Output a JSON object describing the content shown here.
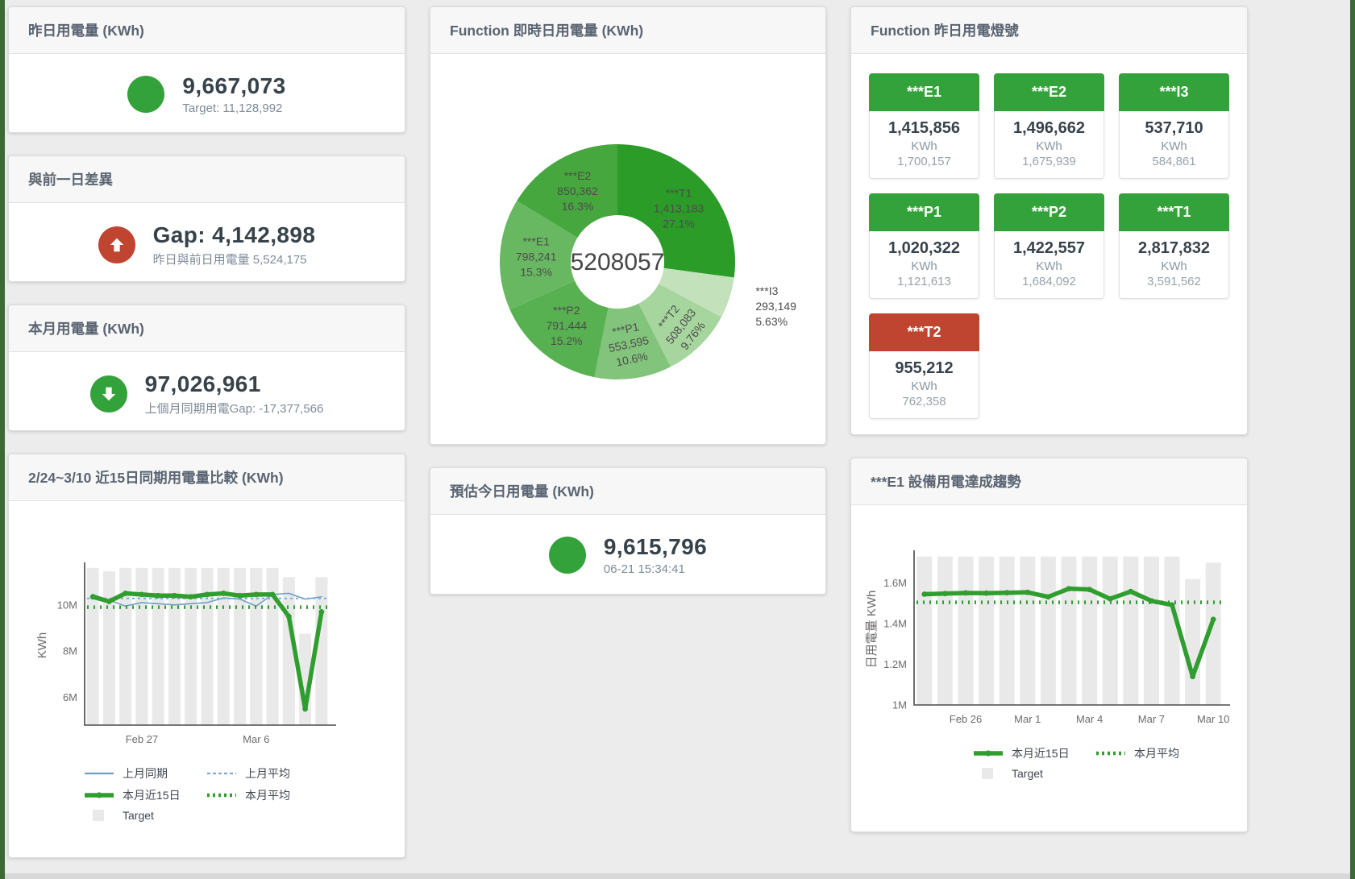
{
  "page": {
    "bg": "#ececec",
    "edge_color": "#3c6a36",
    "bottom_bar_color": "#d8d8d8"
  },
  "stat_cards": {
    "yesterday": {
      "title": "昨日用電量 (KWh)",
      "value": "9,667,073",
      "subtitle": "Target: 11,128,992",
      "icon": "circle",
      "icon_color": "#34a23a"
    },
    "day_gap": {
      "title": "與前一日差異",
      "value": "Gap: 4,142,898",
      "subtitle": "昨日與前日用電量 5,524,175",
      "icon": "arrow-up",
      "icon_color": "#c04531"
    },
    "month": {
      "title": "本月用電量 (KWh)",
      "value": "97,026,961",
      "subtitle": "上個月同期用電Gap: -17,377,566",
      "icon": "arrow-down",
      "icon_color": "#34a23a"
    },
    "estimate": {
      "title": "預估今日用電量 (KWh)",
      "value": "9,615,796",
      "subtitle": "06-21 15:34:41",
      "icon": "circle",
      "icon_color": "#34a23a"
    }
  },
  "lights": {
    "title": "Function 昨日用電燈號",
    "unit": "KWh",
    "status_colors": {
      "green": "#34a23a",
      "red": "#c04531"
    },
    "tiles": [
      {
        "label": "***E1",
        "value": "1,415,856",
        "target": "1,700,157",
        "status": "green"
      },
      {
        "label": "***E2",
        "value": "1,496,662",
        "target": "1,675,939",
        "status": "green"
      },
      {
        "label": "***I3",
        "value": "537,710",
        "target": "584,861",
        "status": "green"
      },
      {
        "label": "***P1",
        "value": "1,020,322",
        "target": "1,121,613",
        "status": "green"
      },
      {
        "label": "***P2",
        "value": "1,422,557",
        "target": "1,684,092",
        "status": "green"
      },
      {
        "label": "***T1",
        "value": "2,817,832",
        "target": "3,591,562",
        "status": "green"
      },
      {
        "label": "***T2",
        "value": "955,212",
        "target": "762,358",
        "status": "red"
      }
    ]
  },
  "chart_data": [
    {
      "id": "realtime_donut",
      "type": "pie",
      "title": "Function 即時日用電量 (KWh)",
      "center_total": "5208057",
      "segments": [
        {
          "name": "***T1",
          "value": 1413183,
          "value_label": "1,413,183",
          "pct": 27.1,
          "pct_label": "27.1%",
          "color": "#2a9c27",
          "label_rotate": 0,
          "label_outside": false,
          "label_radius": 101
        },
        {
          "name": "***I3",
          "value": 293149,
          "value_label": "293,149",
          "pct": 5.63,
          "pct_label": "5.63%",
          "color": "#c3e2bc",
          "label_rotate": 0,
          "label_outside": true,
          "label_radius": 180
        },
        {
          "name": "***T2",
          "value": 508083,
          "value_label": "508,083",
          "pct": 9.76,
          "pct_label": "9.76%",
          "color": "#a6d59e",
          "label_rotate": -52,
          "label_outside": false,
          "label_radius": 112
        },
        {
          "name": "***P1",
          "value": 553595,
          "value_label": "553,595",
          "pct": 10.6,
          "pct_label": "10.6%",
          "color": "#82c47b",
          "label_rotate": -12,
          "label_outside": false,
          "label_radius": 103
        },
        {
          "name": "***P2",
          "value": 791444,
          "value_label": "791,444",
          "pct": 15.2,
          "pct_label": "15.2%",
          "color": "#57b150",
          "label_rotate": 0,
          "label_outside": false,
          "label_radius": 101
        },
        {
          "name": "***E1",
          "value": 798241,
          "value_label": "798,241",
          "pct": 15.3,
          "pct_label": "15.3%",
          "color": "#68b861",
          "label_rotate": 0,
          "label_outside": false,
          "label_radius": 101
        },
        {
          "name": "***E2",
          "value": 850362,
          "value_label": "850,362",
          "pct": 16.3,
          "pct_label": "16.3%",
          "color": "#45a73e",
          "label_rotate": 0,
          "label_outside": false,
          "label_radius": 101
        }
      ]
    },
    {
      "id": "compare15",
      "type": "line",
      "title": "2/24~3/10 近15日同期用電量比較 (KWh)",
      "ylabel": "KWh",
      "ylim": [
        4800000,
        11700000
      ],
      "yticks": [
        {
          "v": 6000000,
          "label": "6M"
        },
        {
          "v": 8000000,
          "label": "8M"
        },
        {
          "v": 10000000,
          "label": "10M"
        }
      ],
      "x_days": [
        "2/24",
        "2/25",
        "2/26",
        "2/27",
        "2/28",
        "3/1",
        "3/2",
        "3/3",
        "3/4",
        "3/5",
        "3/6",
        "3/7",
        "3/8",
        "3/9",
        "3/10"
      ],
      "xticks": [
        {
          "i": 3,
          "label": "Feb 27"
        },
        {
          "i": 10,
          "label": "Mar 6"
        }
      ],
      "bars": {
        "name": "Target",
        "color": "#e9e9e9",
        "values": [
          11600000,
          11450000,
          11600000,
          11600000,
          11600000,
          11600000,
          11600000,
          11600000,
          11600000,
          11600000,
          11600000,
          11600000,
          11200000,
          8750000,
          11200000
        ]
      },
      "series": [
        {
          "name": "上月同期",
          "color": "#6f9fc8",
          "width": 1.6,
          "dash": "",
          "marker": false,
          "values": [
            10450000,
            10200000,
            9950000,
            10100000,
            10050000,
            10000000,
            10050000,
            10100000,
            10300000,
            10250000,
            9950000,
            10450000,
            10500000,
            10250000,
            10350000
          ]
        },
        {
          "name": "上月平均",
          "color": "#7dabd1",
          "width": 2,
          "dash": "3,4",
          "marker": false,
          "const": 10280000
        },
        {
          "name": "本月平均",
          "color": "#2f9e2f",
          "width": 4.5,
          "dash": "2,6",
          "marker": false,
          "const": 9900000
        },
        {
          "name": "本月近15日",
          "color": "#2f9e2f",
          "width": 5.5,
          "dash": "",
          "marker": true,
          "values": [
            10350000,
            10150000,
            10500000,
            10450000,
            10400000,
            10400000,
            10350000,
            10450000,
            10500000,
            10400000,
            10450000,
            10450000,
            9500000,
            5500000,
            9700000
          ]
        }
      ],
      "legend_rows": [
        [
          {
            "sw": "solid",
            "color": "#6f9fc8",
            "label": "上月同期"
          },
          {
            "sw": "dashed",
            "color": "#7dabd1",
            "label": "上月平均"
          }
        ],
        [
          {
            "sw": "thick",
            "color": "#2f9e2f",
            "label": "本月近15日"
          },
          {
            "sw": "dotted",
            "color": "#2f9e2f",
            "label": "本月平均"
          }
        ],
        [
          {
            "sw": "bar",
            "color": "#e9e9e9",
            "label": "Target"
          }
        ]
      ]
    },
    {
      "id": "e1_trend",
      "type": "line",
      "title": "***E1 設備用電達成趨勢",
      "ylabel": "日用電量 KWh",
      "ylim": [
        1000000,
        1745000
      ],
      "yticks": [
        {
          "v": 1000000,
          "label": "1M"
        },
        {
          "v": 1200000,
          "label": "1.2M"
        },
        {
          "v": 1400000,
          "label": "1.4M"
        },
        {
          "v": 1600000,
          "label": "1.6M"
        }
      ],
      "x_days": [
        "2/24",
        "2/25",
        "2/26",
        "2/27",
        "2/28",
        "3/1",
        "3/2",
        "3/3",
        "3/4",
        "3/5",
        "3/6",
        "3/7",
        "3/8",
        "3/9",
        "3/10"
      ],
      "xticks": [
        {
          "i": 2,
          "label": "Feb 26"
        },
        {
          "i": 5,
          "label": "Mar 1"
        },
        {
          "i": 8,
          "label": "Mar 4"
        },
        {
          "i": 11,
          "label": "Mar 7"
        },
        {
          "i": 14,
          "label": "Mar 10"
        }
      ],
      "bars": {
        "name": "Target",
        "color": "#e9e9e9",
        "values": [
          1730000,
          1730000,
          1730000,
          1730000,
          1730000,
          1730000,
          1730000,
          1730000,
          1730000,
          1730000,
          1730000,
          1730000,
          1730000,
          1620000,
          1700000
        ]
      },
      "series": [
        {
          "name": "本月平均",
          "color": "#2f9e2f",
          "width": 4.5,
          "dash": "2,6",
          "marker": false,
          "const": 1505000
        },
        {
          "name": "本月近15日",
          "color": "#2f9e2f",
          "width": 5.5,
          "dash": "",
          "marker": true,
          "values": [
            1545000,
            1548000,
            1551000,
            1550000,
            1552000,
            1554000,
            1532000,
            1572000,
            1568000,
            1522000,
            1558000,
            1512000,
            1492000,
            1140000,
            1421000
          ]
        }
      ],
      "legend_rows": [
        [
          {
            "sw": "thick",
            "color": "#2f9e2f",
            "label": "本月近15日"
          },
          {
            "sw": "dotted",
            "color": "#2f9e2f",
            "label": "本月平均"
          }
        ],
        [
          {
            "sw": "bar",
            "color": "#e9e9e9",
            "label": "Target"
          }
        ]
      ]
    }
  ]
}
